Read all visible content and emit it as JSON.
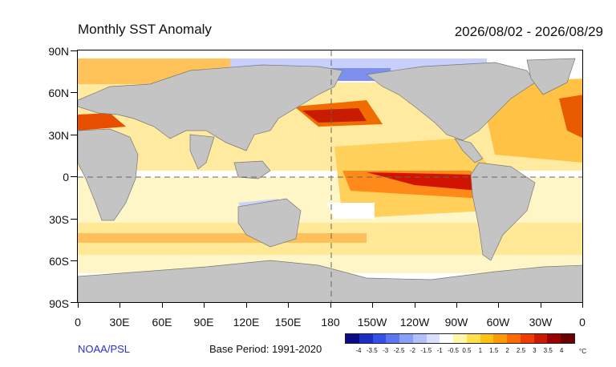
{
  "title": "Monthly SST Anomaly",
  "date_range": "2026/08/02 - 2026/08/29",
  "y_axis_labels": [
    "90N",
    "60N",
    "30N",
    "0",
    "30S",
    "60S",
    "90S"
  ],
  "x_axis_labels": [
    "0",
    "30E",
    "60E",
    "90E",
    "120E",
    "150E",
    "180",
    "150W",
    "120W",
    "90W",
    "60W",
    "30W",
    "0"
  ],
  "credit": "NOAA/PSL",
  "base_period": "Base Period: 1991-2020",
  "colorbar": {
    "labels": [
      "-4",
      "-3.5",
      "-3",
      "-2.5",
      "-2",
      "-1.5",
      "-1",
      "-0.5",
      "0.5",
      "1",
      "1.5",
      "2",
      "2.5",
      "3",
      "3.5",
      "4"
    ],
    "unit": "°C",
    "colors": [
      "#0b0b8a",
      "#1c2fc4",
      "#3550e6",
      "#5b76f0",
      "#8aa0f6",
      "#b3c1fa",
      "#d8e0fd",
      "#ffffff",
      "#fff6a8",
      "#ffe24a",
      "#ffc20e",
      "#ff9a00",
      "#ff6a00",
      "#f03c00",
      "#cc1a00",
      "#9a0000",
      "#6a0000"
    ]
  }
}
